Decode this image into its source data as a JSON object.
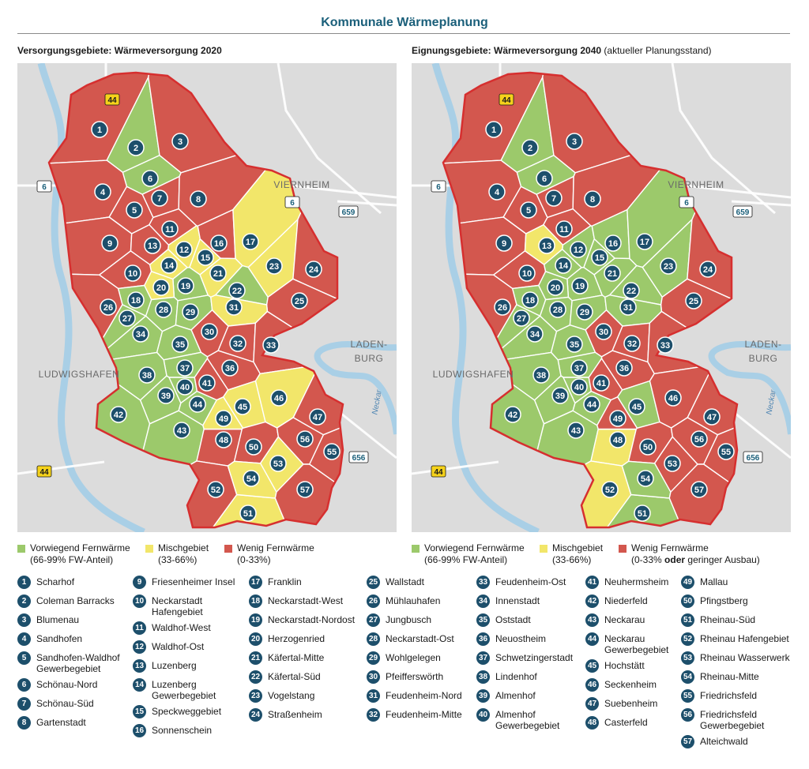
{
  "title": "Kommunale Wärmeplanung",
  "colors": {
    "green": "#9cc96b",
    "yellow": "#f2e66a",
    "red": "#d3574e",
    "marker": "#1d4f6b",
    "title": "#1a5f7a",
    "border": "#d62f2f",
    "road": "#ffffff",
    "water": "#a9cfe6",
    "land": "#dcdcdc"
  },
  "maps": [
    {
      "heading_bold": "Versorgungsgebiete: Wärmeversorgung 2020",
      "heading_normal": ""
    },
    {
      "heading_bold": "Eignungsgebiete: Wärmeversorgung 2040",
      "heading_normal": "(aktueller Planungsstand)"
    }
  ],
  "place_labels": {
    "viernheim": "VIERNHEIM",
    "ludwigshafen": "LUDWIGSHAFEN",
    "ladenburg_1": "LADEN-",
    "ladenburg_2": "BURG",
    "neckar": "Neckar"
  },
  "road_signs": {
    "a44_top": "44",
    "a44_bottom": "44",
    "b6_left": "6",
    "b6_right": "6",
    "r659": "659",
    "r656": "656"
  },
  "legend": {
    "map1": [
      {
        "line1": "Vorwiegend Fernwärme",
        "line2": "(66-99% FW-Anteil)",
        "color": "green"
      },
      {
        "line1": "Mischgebiet",
        "line2": "(33-66%)",
        "color": "yellow"
      },
      {
        "line1": "Wenig Fernwärme",
        "line2": "(0-33%)",
        "color": "red"
      }
    ],
    "map2": [
      {
        "line1": "Vorwiegend Fernwärme",
        "line2": "(66-99% FW-Anteil)",
        "color": "green"
      },
      {
        "line1": "Mischgebiet",
        "line2": "(33-66%)",
        "color": "yellow"
      },
      {
        "line1": "Wenig Fernwärme",
        "line2a": "(0-33%",
        "line2b": "oder",
        "line2c": "geringer Ausbau)",
        "color": "red"
      }
    ]
  },
  "districts": [
    {
      "n": "1",
      "name": "Scharhof",
      "s20": "red",
      "s40": "red"
    },
    {
      "n": "2",
      "name": "Coleman Barracks",
      "s20": "green",
      "s40": "green"
    },
    {
      "n": "3",
      "name": "Blumenau",
      "s20": "red",
      "s40": "red"
    },
    {
      "n": "4",
      "name": "Sandhofen",
      "s20": "red",
      "s40": "red"
    },
    {
      "n": "5",
      "name": "Sandhofen-Waldhof",
      "name2": "Gewerbegebiet",
      "s20": "red",
      "s40": "red"
    },
    {
      "n": "6",
      "name": "Schönau-Nord",
      "s20": "green",
      "s40": "green"
    },
    {
      "n": "7",
      "name": "Schönau-Süd",
      "s20": "red",
      "s40": "red"
    },
    {
      "n": "8",
      "name": "Gartenstadt",
      "s20": "red",
      "s40": "red"
    },
    {
      "n": "9",
      "name": "Friesenheimer Insel",
      "s20": "red",
      "s40": "red"
    },
    {
      "n": "10",
      "name": "Neckarstadt",
      "name2": "Hafengebiet",
      "s20": "red",
      "s40": "red"
    },
    {
      "n": "11",
      "name": "Waldhof-West",
      "s20": "red",
      "s40": "red"
    },
    {
      "n": "12",
      "name": "Waldhof-Ost",
      "s20": "yellow",
      "s40": "green"
    },
    {
      "n": "13",
      "name": "Luzenberg",
      "s20": "red",
      "s40": "yellow"
    },
    {
      "n": "14",
      "name": "Luzenberg",
      "name2": "Gewerbegebiet",
      "s20": "yellow",
      "s40": "green"
    },
    {
      "n": "15",
      "name": "Speckweggebiet",
      "s20": "yellow",
      "s40": "green"
    },
    {
      "n": "16",
      "name": "Sonnenschein",
      "s20": "red",
      "s40": "green"
    },
    {
      "n": "17",
      "name": "Franklin",
      "s20": "yellow",
      "s40": "green"
    },
    {
      "n": "18",
      "name": "Neckarstadt-West",
      "s20": "green",
      "s40": "green"
    },
    {
      "n": "19",
      "name": "Neckarstadt-Nordost",
      "s20": "green",
      "s40": "green"
    },
    {
      "n": "20",
      "name": "Herzogenried",
      "s20": "yellow",
      "s40": "green"
    },
    {
      "n": "21",
      "name": "Käfertal-Mitte",
      "s20": "yellow",
      "s40": "green"
    },
    {
      "n": "22",
      "name": "Käfertal-Süd",
      "s20": "green",
      "s40": "green"
    },
    {
      "n": "23",
      "name": "Vogelstang",
      "s20": "yellow",
      "s40": "green"
    },
    {
      "n": "24",
      "name": "Straßenheim",
      "s20": "red",
      "s40": "red"
    },
    {
      "n": "25",
      "name": "Wallstadt",
      "s20": "red",
      "s40": "red"
    },
    {
      "n": "26",
      "name": "Mühlauhafen",
      "s20": "red",
      "s40": "red"
    },
    {
      "n": "27",
      "name": "Jungbusch",
      "s20": "green",
      "s40": "green"
    },
    {
      "n": "28",
      "name": "Neckarstadt-Ost",
      "s20": "green",
      "s40": "green"
    },
    {
      "n": "29",
      "name": "Wohlgelegen",
      "s20": "green",
      "s40": "green"
    },
    {
      "n": "30",
      "name": "Pfeifferswörth",
      "s20": "red",
      "s40": "red"
    },
    {
      "n": "31",
      "name": "Feudenheim-Nord",
      "s20": "yellow",
      "s40": "green"
    },
    {
      "n": "32",
      "name": "Feudenheim-Mitte",
      "s20": "red",
      "s40": "red"
    },
    {
      "n": "33",
      "name": "Feudenheim-Ost",
      "s20": "red",
      "s40": "red"
    },
    {
      "n": "34",
      "name": "Innenstadt",
      "s20": "green",
      "s40": "green"
    },
    {
      "n": "35",
      "name": "Oststadt",
      "s20": "green",
      "s40": "green"
    },
    {
      "n": "36",
      "name": "Neuostheim",
      "s20": "red",
      "s40": "red"
    },
    {
      "n": "37",
      "name": "Schwetzingerstadt",
      "s20": "green",
      "s40": "green"
    },
    {
      "n": "38",
      "name": "Lindenhof",
      "s20": "green",
      "s40": "green"
    },
    {
      "n": "39",
      "name": "Almenhof",
      "s20": "green",
      "s40": "green"
    },
    {
      "n": "40",
      "name": "Almenhof",
      "name2": "Gewerbegebiet",
      "s20": "green",
      "s40": "green"
    },
    {
      "n": "41",
      "name": "Neuhermsheim",
      "s20": "red",
      "s40": "red"
    },
    {
      "n": "42",
      "name": "Niederfeld",
      "s20": "green",
      "s40": "green"
    },
    {
      "n": "43",
      "name": "Neckarau",
      "s20": "green",
      "s40": "green"
    },
    {
      "n": "44",
      "name": "Neckarau",
      "name2": "Gewerbegebiet",
      "s20": "green",
      "s40": "green"
    },
    {
      "n": "45",
      "name": "Hochstätt",
      "s20": "yellow",
      "s40": "green"
    },
    {
      "n": "46",
      "name": "Seckenheim",
      "s20": "yellow",
      "s40": "red"
    },
    {
      "n": "47",
      "name": "Suebenheim",
      "s20": "red",
      "s40": "red"
    },
    {
      "n": "48",
      "name": "Casterfeld",
      "s20": "red",
      "s40": "yellow"
    },
    {
      "n": "49",
      "name": "Mallau",
      "s20": "yellow",
      "s40": "red"
    },
    {
      "n": "50",
      "name": "Pfingstberg",
      "s20": "red",
      "s40": "red"
    },
    {
      "n": "51",
      "name": "Rheinau-Süd",
      "s20": "yellow",
      "s40": "green"
    },
    {
      "n": "52",
      "name": "Rheinau Hafengebiet",
      "s20": "red",
      "s40": "yellow"
    },
    {
      "n": "53",
      "name": "Rheinau Wasserwerk",
      "s20": "yellow",
      "s40": "red"
    },
    {
      "n": "54",
      "name": "Rheinau-Mitte",
      "s20": "yellow",
      "s40": "green"
    },
    {
      "n": "55",
      "name": "Friedrichsfeld",
      "s20": "red",
      "s40": "red"
    },
    {
      "n": "56",
      "name": "Friedrichsfeld",
      "name2": "Gewerbegebiet",
      "s20": "red",
      "s40": "red"
    },
    {
      "n": "57",
      "name": "Alteichwald",
      "s20": "red",
      "s40": "red"
    }
  ]
}
